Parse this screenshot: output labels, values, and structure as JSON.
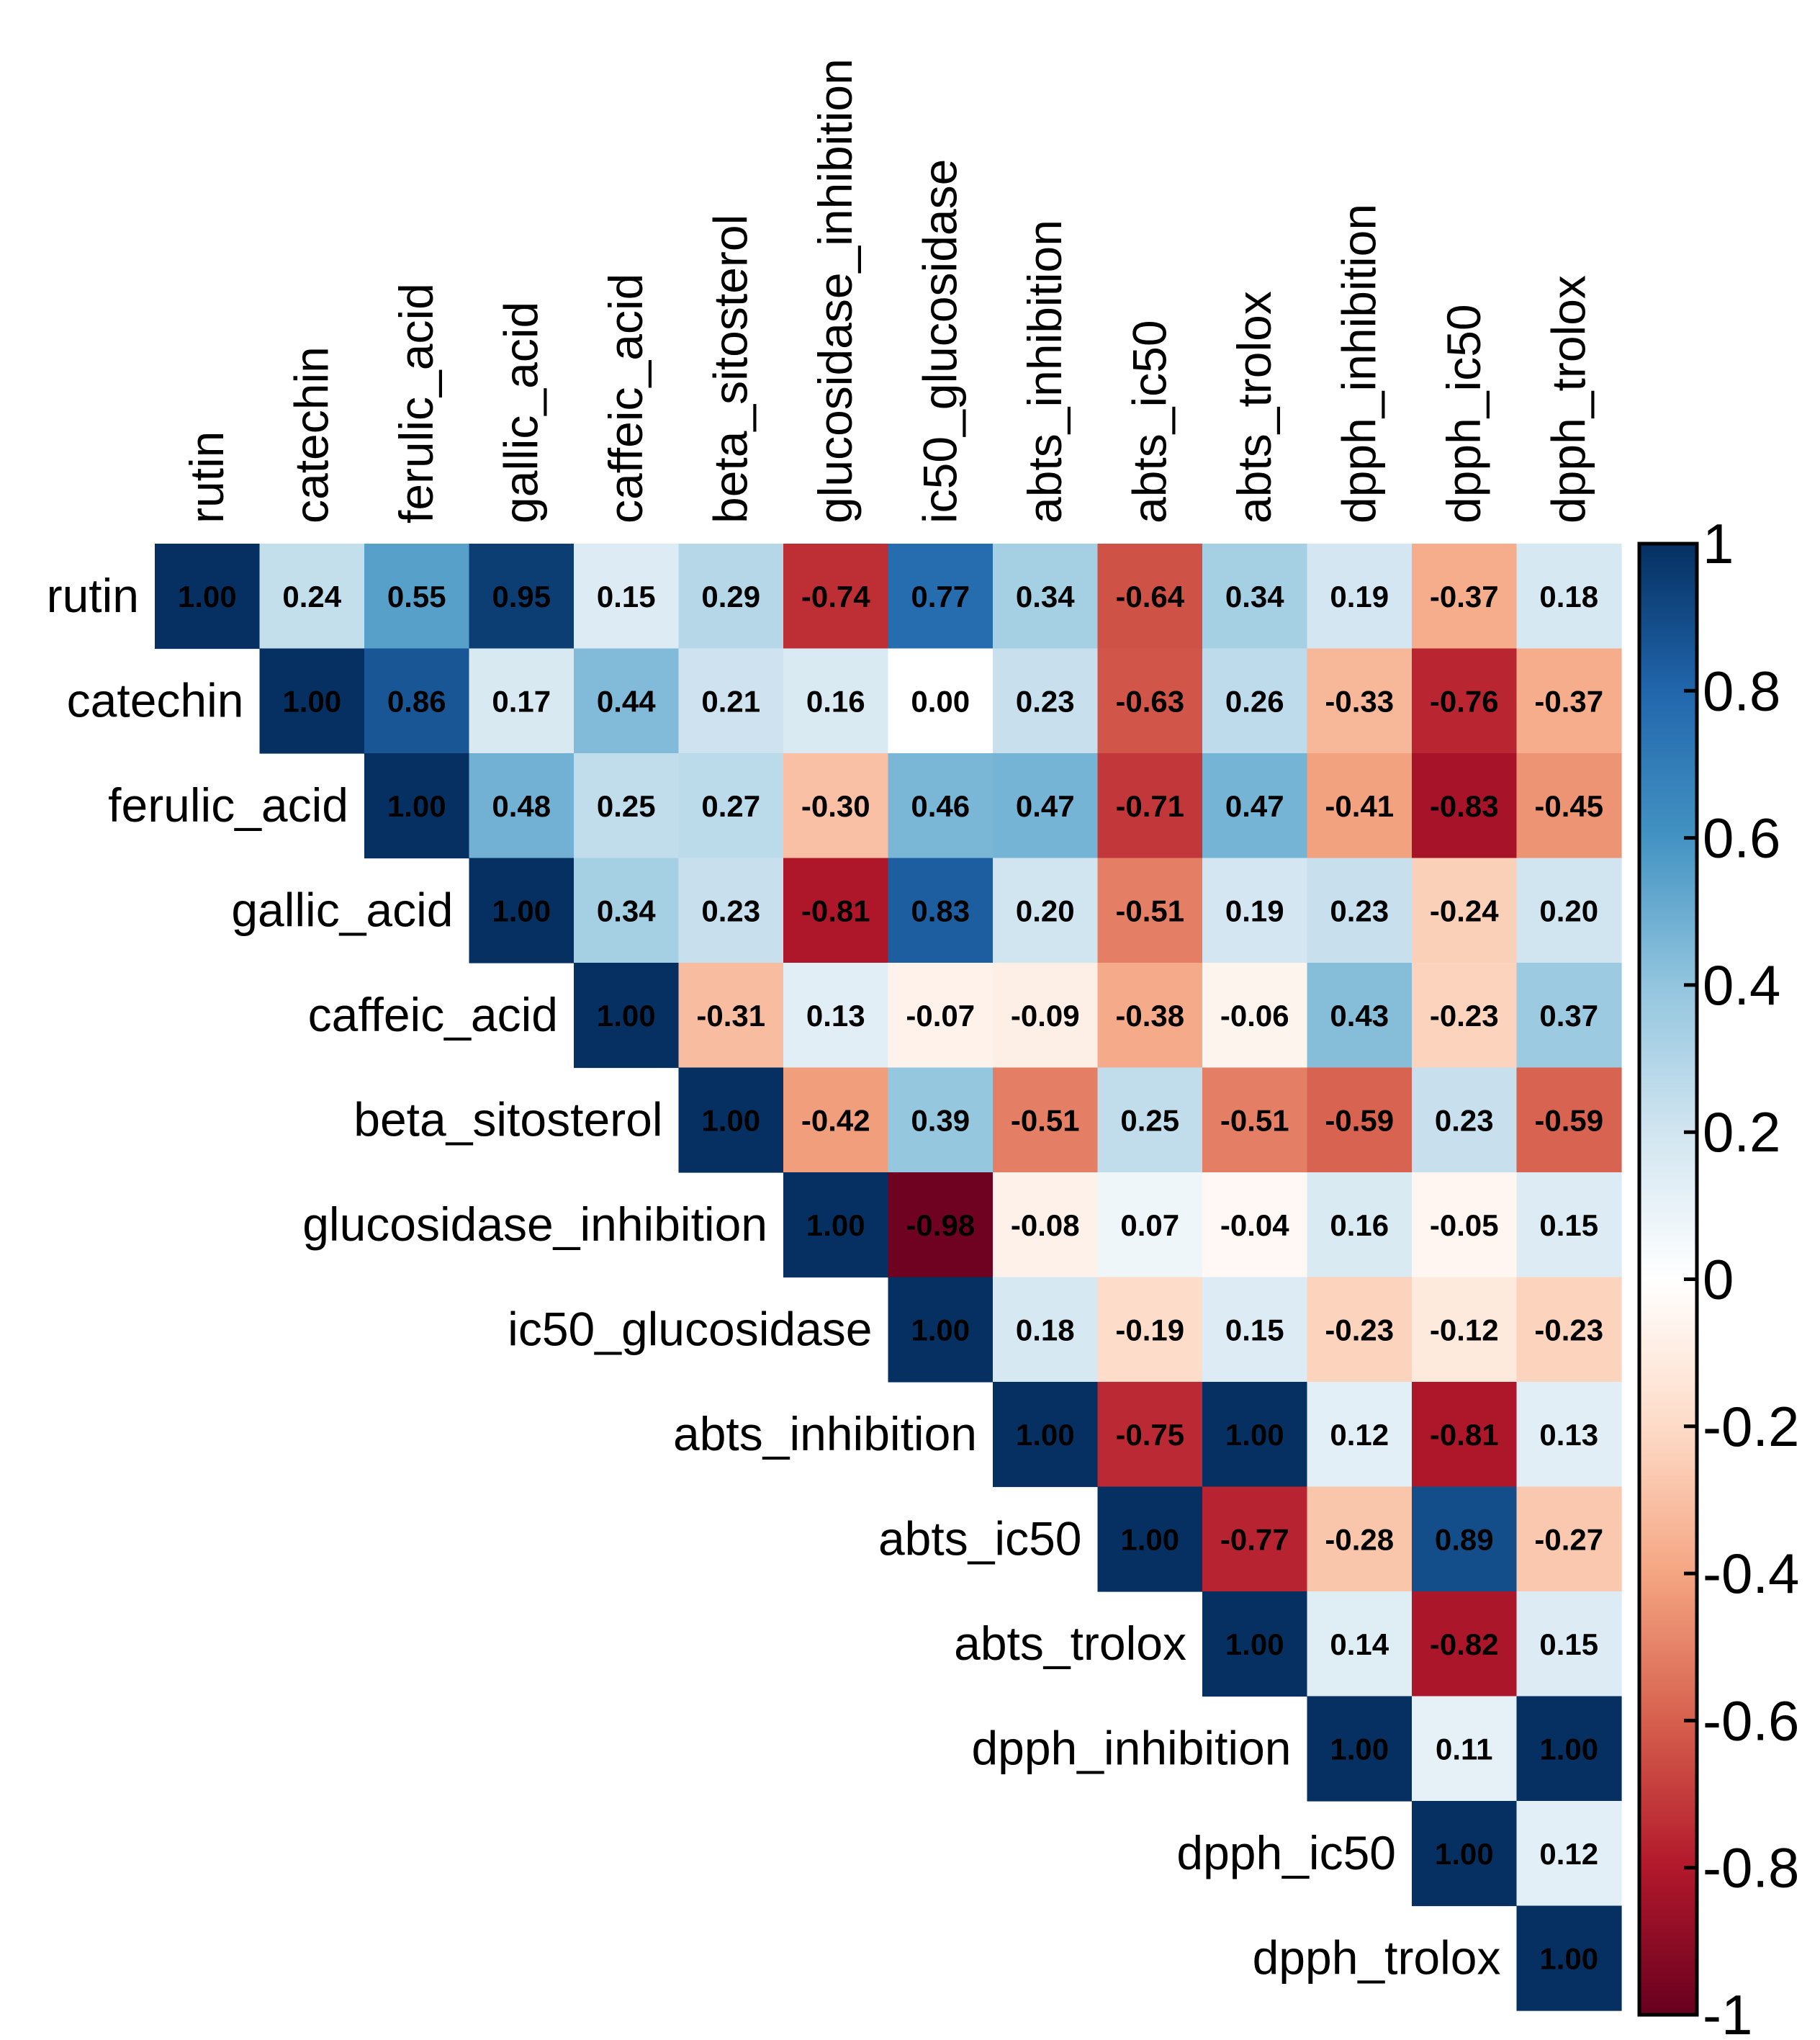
{
  "chart_data": {
    "type": "heatmap",
    "subtype": "correlation-upper-triangle",
    "variables": [
      "rutin",
      "catechin",
      "ferulic_acid",
      "gallic_acid",
      "caffeic_acid",
      "beta_sitosterol",
      "glucosidase_inhibition",
      "ic50_glucosidase",
      "abts_inhibition",
      "abts_ic50",
      "abts_trolox",
      "dpph_inhibition",
      "dpph_ic50",
      "dpph_trolox"
    ],
    "matrix": [
      [
        1.0,
        0.24,
        0.55,
        0.95,
        0.15,
        0.29,
        -0.74,
        0.77,
        0.34,
        -0.64,
        0.34,
        0.19,
        -0.37,
        0.18
      ],
      [
        null,
        1.0,
        0.86,
        0.17,
        0.44,
        0.21,
        0.16,
        0.0,
        0.23,
        -0.63,
        0.26,
        -0.33,
        -0.76,
        -0.37
      ],
      [
        null,
        null,
        1.0,
        0.48,
        0.25,
        0.27,
        -0.3,
        0.46,
        0.47,
        -0.71,
        0.47,
        -0.41,
        -0.83,
        -0.45
      ],
      [
        null,
        null,
        null,
        1.0,
        0.34,
        0.23,
        -0.81,
        0.83,
        0.2,
        -0.51,
        0.19,
        0.23,
        -0.24,
        0.2
      ],
      [
        null,
        null,
        null,
        null,
        1.0,
        -0.31,
        0.13,
        -0.07,
        -0.09,
        -0.38,
        -0.06,
        0.43,
        -0.23,
        0.37
      ],
      [
        null,
        null,
        null,
        null,
        null,
        1.0,
        -0.42,
        0.39,
        -0.51,
        0.25,
        -0.51,
        -0.59,
        0.23,
        -0.59
      ],
      [
        null,
        null,
        null,
        null,
        null,
        null,
        1.0,
        -0.98,
        -0.08,
        0.07,
        -0.04,
        0.16,
        -0.05,
        0.15
      ],
      [
        null,
        null,
        null,
        null,
        null,
        null,
        null,
        1.0,
        0.18,
        -0.19,
        0.15,
        -0.23,
        -0.12,
        -0.23
      ],
      [
        null,
        null,
        null,
        null,
        null,
        null,
        null,
        null,
        1.0,
        -0.75,
        1.0,
        0.12,
        -0.81,
        0.13
      ],
      [
        null,
        null,
        null,
        null,
        null,
        null,
        null,
        null,
        null,
        1.0,
        -0.77,
        -0.28,
        0.89,
        -0.27
      ],
      [
        null,
        null,
        null,
        null,
        null,
        null,
        null,
        null,
        null,
        null,
        1.0,
        0.14,
        -0.82,
        0.15
      ],
      [
        null,
        null,
        null,
        null,
        null,
        null,
        null,
        null,
        null,
        null,
        null,
        1.0,
        0.11,
        1.0
      ],
      [
        null,
        null,
        null,
        null,
        null,
        null,
        null,
        null,
        null,
        null,
        null,
        null,
        1.0,
        0.12
      ],
      [
        null,
        null,
        null,
        null,
        null,
        null,
        null,
        null,
        null,
        null,
        null,
        null,
        null,
        1.0
      ]
    ],
    "value_range": [
      -1,
      1
    ],
    "colorbar": {
      "ticks": [
        1,
        0.8,
        0.6,
        0.4,
        0.2,
        0,
        -0.2,
        -0.4,
        -0.6,
        -0.8,
        -1
      ],
      "tick_labels": [
        "1",
        "0.8",
        "0.6",
        "0.4",
        "0.2",
        "0",
        "-0.2",
        "-0.4",
        "-0.6",
        "-0.8",
        "-1"
      ],
      "placement": "right"
    },
    "colors": {
      "neg_end": "#67001F",
      "pos_end": "#053061",
      "stops": [
        "#67001F",
        "#B2182B",
        "#D6604D",
        "#F4A582",
        "#FDDBC7",
        "#FFFFFF",
        "#D1E5F0",
        "#92C5DE",
        "#4393C3",
        "#2166AC",
        "#053061"
      ]
    },
    "title": "",
    "xlabel": "",
    "ylabel": ""
  }
}
